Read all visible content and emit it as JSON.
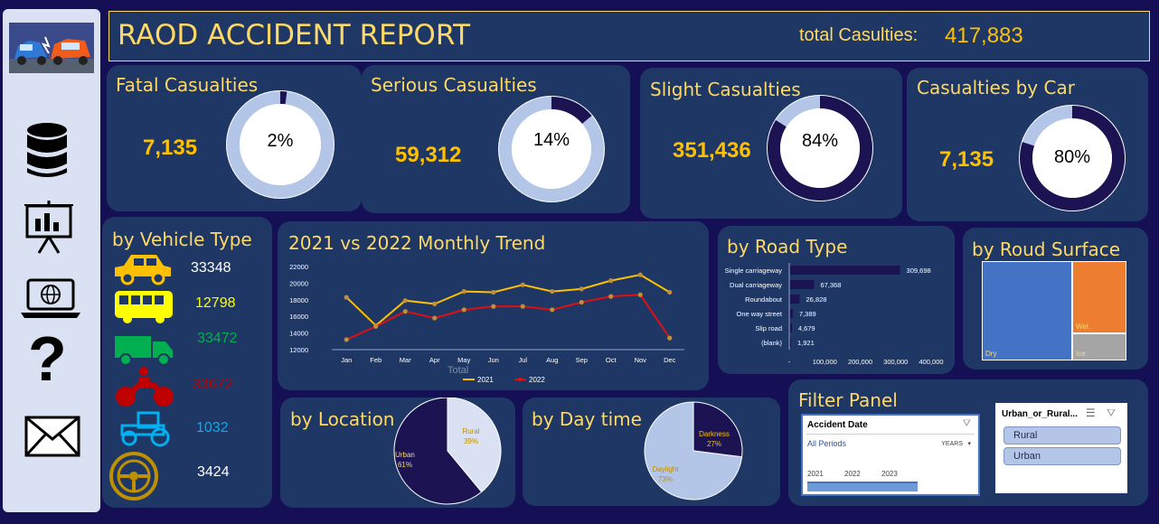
{
  "header": {
    "title": "RAOD ACCIDENT REPORT",
    "total_label": "total Casulties:",
    "total_value": "417,883"
  },
  "sidebar": {
    "icons": [
      "accident-cars-logo",
      "database-icon",
      "presentation-chart-icon",
      "laptop-globe-icon",
      "question-icon",
      "mail-icon"
    ]
  },
  "kpis": [
    {
      "title": "Fatal Casualties",
      "value": "7,135",
      "percent_label": "2%",
      "fraction": 0.02
    },
    {
      "title": "Serious Casualties",
      "value": "59,312",
      "percent_label": "14%",
      "fraction": 0.14
    },
    {
      "title": "Slight Casualties",
      "value": "351,436",
      "percent_label": "84%",
      "fraction": 0.84
    },
    {
      "title": "Casualties by Car",
      "value": "7,135",
      "percent_label": "80%",
      "fraction": 0.8
    }
  ],
  "vehicle": {
    "title": "by Vehicle Type",
    "items": [
      {
        "icon": "car-icon",
        "value": "33348",
        "color": "#ffffff"
      },
      {
        "icon": "bus-icon",
        "value": "12798",
        "color": "#ffff00"
      },
      {
        "icon": "truck-icon",
        "value": "33472",
        "color": "#00b050"
      },
      {
        "icon": "motorcycle-icon",
        "value": "33672",
        "color": "#c00000"
      },
      {
        "icon": "tractor-icon",
        "value": "1032",
        "color": "#00b0f0"
      },
      {
        "icon": "steering-wheel-icon",
        "value": "3424",
        "color": "#ffffff"
      }
    ]
  },
  "trend": {
    "title": "2021 vs 2022 Monthly Trend",
    "axis_title": "Total",
    "legend": [
      "2021",
      "2022"
    ]
  },
  "road": {
    "title": "by Road Type"
  },
  "surface": {
    "title": "by Roud Surface"
  },
  "location": {
    "title": "by Location"
  },
  "daytime": {
    "title": "by Day time"
  },
  "filter": {
    "title": "Filter Panel",
    "date_slicer": {
      "header": "Accident Date",
      "period_label": "All Periods",
      "level": "YEARS",
      "years": [
        "2021",
        "2022",
        "2023"
      ]
    },
    "area_slicer": {
      "header": "Urban_or_Rural...",
      "items": [
        "Rural",
        "Urban"
      ]
    }
  },
  "colors": {
    "background": "#150f55",
    "panel": "#1f3764",
    "accent": "#ffc000",
    "title": "#ffd966",
    "ring_dark": "#1c1352",
    "ring_light": "#b4c6e7"
  },
  "chart_data": [
    {
      "type": "line",
      "title": "2021 vs 2022 Monthly Trend",
      "categories": [
        "Jan",
        "Feb",
        "Mar",
        "Apr",
        "May",
        "Jun",
        "Jul",
        "Aug",
        "Sep",
        "Oct",
        "Nov",
        "Dec"
      ],
      "series": [
        {
          "name": "2021",
          "values": [
            18300,
            14900,
            17900,
            17500,
            19000,
            18900,
            19800,
            19000,
            19300,
            20300,
            21000,
            18900
          ],
          "color": "#ffc000"
        },
        {
          "name": "2022",
          "values": [
            13200,
            14800,
            16600,
            15800,
            16800,
            17200,
            17200,
            16800,
            17700,
            18400,
            18600,
            13400
          ],
          "color": "#e01010"
        }
      ],
      "yticks": [
        "12000",
        "14000",
        "16000",
        "18000",
        "20000",
        "22000"
      ],
      "ylim": [
        12000,
        22000
      ],
      "xlabel": "Total"
    },
    {
      "type": "bar",
      "title": "by Road Type",
      "categories": [
        "Single carriageway",
        "Dual carriageway",
        "Roundabout",
        "One way street",
        "Slip road",
        "(blank)"
      ],
      "values": [
        309698,
        67368,
        26828,
        7389,
        4679,
        1921
      ],
      "value_labels": [
        "309,698",
        "67,368",
        "26,828",
        "7,389",
        "4,679",
        "1,921"
      ],
      "xticks": [
        "-",
        "100,000",
        "200,000",
        "300,000",
        "400,000"
      ],
      "xlim": [
        0,
        400000
      ]
    },
    {
      "type": "treemap",
      "title": "by Roud Surface",
      "categories": [
        "Dry",
        "Wet",
        "Ice"
      ],
      "colors": [
        "#4472c4",
        "#ed7d31",
        "#a5a5a5"
      ]
    },
    {
      "type": "pie",
      "title": "by Location",
      "categories": [
        "Rural",
        "Urban"
      ],
      "values": [
        39,
        61
      ],
      "labels": [
        "39%",
        "61%"
      ]
    },
    {
      "type": "pie",
      "title": "by Day time",
      "categories": [
        "Darkness",
        "Daylight"
      ],
      "values": [
        27,
        73
      ],
      "labels": [
        "27%",
        "73%"
      ]
    }
  ]
}
